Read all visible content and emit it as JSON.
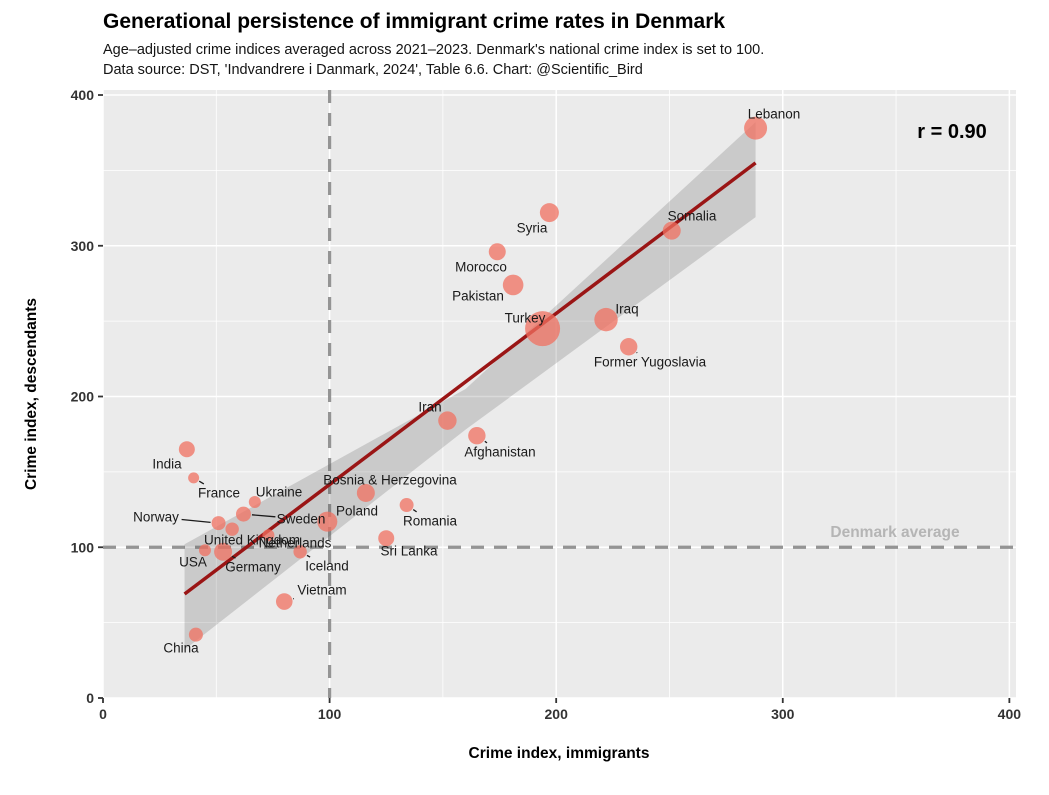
{
  "header": {
    "title": "Generational persistence of immigrant crime rates in Denmark",
    "subtitle_line1": "Age–adjusted crime indices averaged across 2021–2023. Denmark's national crime index is set to 100.",
    "subtitle_line2": "Data source: DST, 'Indvandrere i Danmark, 2024', Table 6.6.  Chart: @Scientific_Bird"
  },
  "chart_data": {
    "type": "scatter",
    "title": "Generational persistence of immigrant crime rates in Denmark",
    "xlabel": "Crime index, immigrants",
    "ylabel": "Crime index, descendants",
    "xlim": [
      0,
      400
    ],
    "ylim": [
      0,
      400
    ],
    "x_ticks": [
      0,
      100,
      200,
      300,
      400
    ],
    "y_ticks": [
      0,
      100,
      200,
      300,
      400
    ],
    "minor_grid_step": 50,
    "grid": true,
    "correlation": "r = 0.90",
    "reference_line_label": "Denmark average",
    "reference_x": 100,
    "reference_y": 100,
    "trend_line": {
      "x1": 36,
      "y1": 69,
      "x2": 288,
      "y2": 355
    },
    "confidence_band": [
      [
        36,
        102
      ],
      [
        160,
        205
      ],
      [
        288,
        382
      ],
      [
        288,
        319
      ],
      [
        160,
        178
      ],
      [
        36,
        32
      ]
    ],
    "points": [
      {
        "country": "Lebanon",
        "immigrants": 288,
        "descendants": 378,
        "r": 11.5
      },
      {
        "country": "Somalia",
        "immigrants": 251,
        "descendants": 310,
        "r": 9
      },
      {
        "country": "Syria",
        "immigrants": 197,
        "descendants": 322,
        "r": 9.5
      },
      {
        "country": "Morocco",
        "immigrants": 174,
        "descendants": 296,
        "r": 8.5
      },
      {
        "country": "Pakistan",
        "immigrants": 181,
        "descendants": 274,
        "r": 10.3
      },
      {
        "country": "Turkey",
        "immigrants": 194,
        "descendants": 245,
        "r": 17.5
      },
      {
        "country": "Iraq",
        "immigrants": 222,
        "descendants": 251,
        "r": 11.7
      },
      {
        "country": "Former Yugoslavia",
        "immigrants": 232,
        "descendants": 233,
        "r": 8.7
      },
      {
        "country": "Iran",
        "immigrants": 152,
        "descendants": 184,
        "r": 9.2
      },
      {
        "country": "Afghanistan",
        "immigrants": 165,
        "descendants": 174,
        "r": 8.7
      },
      {
        "country": "India",
        "immigrants": 37,
        "descendants": 165,
        "r": 8
      },
      {
        "country": "France",
        "immigrants": 40,
        "descendants": 146,
        "r": 5.5
      },
      {
        "country": "Bosnia & Herzegovina",
        "immigrants": 116,
        "descendants": 136,
        "r": 9
      },
      {
        "country": "Ukraine",
        "immigrants": 67,
        "descendants": 130,
        "r": 6
      },
      {
        "country": "Romania",
        "immigrants": 134,
        "descendants": 128,
        "r": 7
      },
      {
        "country": "Sweden",
        "immigrants": 62,
        "descendants": 122,
        "r": 7.5
      },
      {
        "country": "Poland",
        "immigrants": 99,
        "descendants": 117,
        "r": 10
      },
      {
        "country": "Norway",
        "immigrants": 51,
        "descendants": 116,
        "r": 7
      },
      {
        "country": "United Kingdom",
        "immigrants": 57,
        "descendants": 112,
        "r": 6.7
      },
      {
        "country": "Netherlands",
        "immigrants": 73,
        "descendants": 108,
        "r": 6
      },
      {
        "country": "Sri Lanka",
        "immigrants": 125,
        "descendants": 106,
        "r": 8
      },
      {
        "country": "USA",
        "immigrants": 45,
        "descendants": 98,
        "r": 6
      },
      {
        "country": "Germany",
        "immigrants": 53,
        "descendants": 97,
        "r": 9
      },
      {
        "country": "Iceland",
        "immigrants": 87,
        "descendants": 97,
        "r": 6.7
      },
      {
        "country": "Vietnam",
        "immigrants": 80,
        "descendants": 64,
        "r": 8.3
      },
      {
        "country": "China",
        "immigrants": 41,
        "descendants": 42,
        "r": 7
      }
    ],
    "legend": "none",
    "colors": {
      "point_fill": "#F07060",
      "point_opacity": "0.75",
      "trend_line": "#9A1515",
      "confidence_band": "#555555",
      "band_opacity": "0.22",
      "panel_background": "#EBEBEB",
      "grid": "#FFFFFF",
      "reference_dash": "#949494",
      "reference_label_color": "#B5B5B5",
      "tick_label_color": "#333333",
      "country_label_color": "#1A1A1A"
    }
  }
}
